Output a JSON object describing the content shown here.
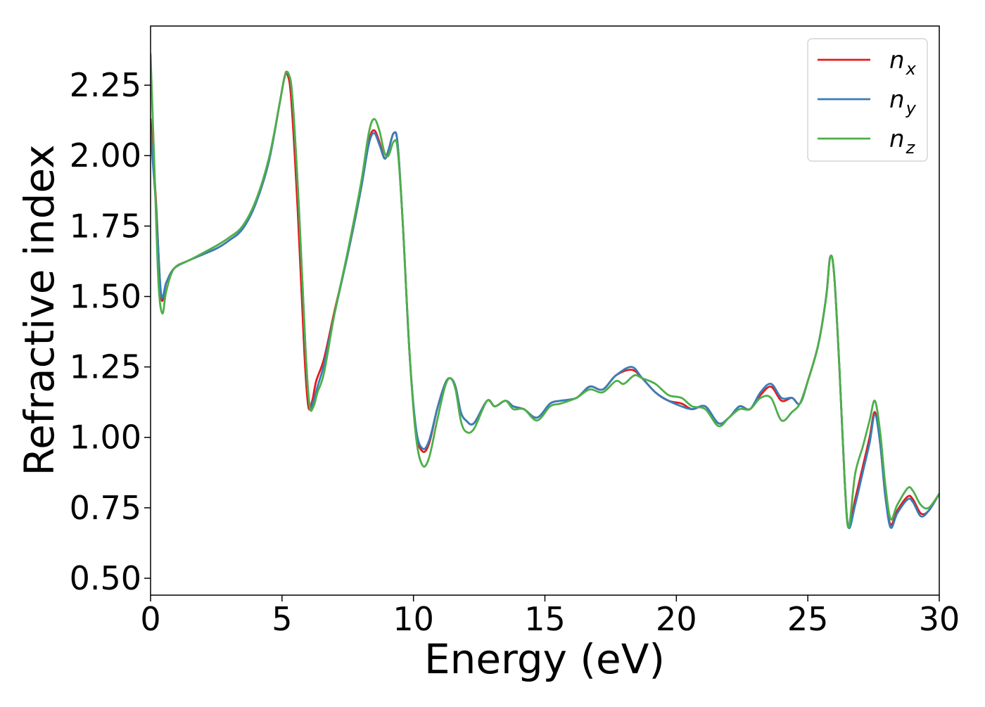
{
  "chart_data": {
    "type": "line",
    "xlabel": "Energy (eV)",
    "ylabel": "Refractive index",
    "xlim": [
      0,
      30
    ],
    "ylim": [
      0.44,
      2.46
    ],
    "xticks": [
      0,
      5,
      10,
      15,
      20,
      25,
      30
    ],
    "xtick_labels": [
      "0",
      "5",
      "10",
      "15",
      "20",
      "25",
      "30"
    ],
    "yticks": [
      0.5,
      0.75,
      1.0,
      1.25,
      1.5,
      1.75,
      2.0,
      2.25
    ],
    "ytick_labels": [
      "0.50",
      "0.75",
      "1.00",
      "1.25",
      "1.50",
      "1.75",
      "2.00",
      "2.25"
    ],
    "grid": false,
    "legend_position": "top-right",
    "series": [
      {
        "name": "n_x",
        "legend_base": "n",
        "legend_sub": "x",
        "color": "#e41a1c",
        "points": [
          [
            0,
            2.13
          ],
          [
            0.2,
            1.85
          ],
          [
            0.4,
            1.5
          ],
          [
            0.6,
            1.55
          ],
          [
            0.9,
            1.6
          ],
          [
            1.5,
            1.63
          ],
          [
            2.5,
            1.67
          ],
          [
            3.0,
            1.7
          ],
          [
            3.5,
            1.74
          ],
          [
            4.0,
            1.83
          ],
          [
            4.5,
            1.98
          ],
          [
            4.9,
            2.18
          ],
          [
            5.1,
            2.28
          ],
          [
            5.2,
            2.29
          ],
          [
            5.35,
            2.2
          ],
          [
            5.6,
            1.8
          ],
          [
            5.85,
            1.3
          ],
          [
            6.0,
            1.11
          ],
          [
            6.15,
            1.13
          ],
          [
            6.3,
            1.2
          ],
          [
            6.6,
            1.28
          ],
          [
            7.0,
            1.45
          ],
          [
            7.5,
            1.65
          ],
          [
            8.0,
            1.88
          ],
          [
            8.3,
            2.05
          ],
          [
            8.5,
            2.09
          ],
          [
            8.7,
            2.05
          ],
          [
            8.9,
            1.99
          ],
          [
            9.05,
            2.02
          ],
          [
            9.25,
            2.08
          ],
          [
            9.4,
            2.04
          ],
          [
            9.6,
            1.75
          ],
          [
            9.85,
            1.3
          ],
          [
            10.1,
            1.02
          ],
          [
            10.35,
            0.95
          ],
          [
            10.6,
            0.98
          ],
          [
            10.9,
            1.1
          ],
          [
            11.2,
            1.19
          ],
          [
            11.4,
            1.21
          ],
          [
            11.6,
            1.18
          ],
          [
            11.8,
            1.09
          ],
          [
            12.0,
            1.06
          ],
          [
            12.3,
            1.05
          ],
          [
            12.8,
            1.13
          ],
          [
            13.1,
            1.11
          ],
          [
            13.5,
            1.13
          ],
          [
            13.8,
            1.11
          ],
          [
            14.2,
            1.1
          ],
          [
            14.7,
            1.07
          ],
          [
            15.2,
            1.12
          ],
          [
            15.6,
            1.13
          ],
          [
            16.2,
            1.14
          ],
          [
            16.7,
            1.18
          ],
          [
            17.2,
            1.17
          ],
          [
            17.7,
            1.22
          ],
          [
            18.3,
            1.24
          ],
          [
            18.7,
            1.21
          ],
          [
            19.2,
            1.16
          ],
          [
            19.7,
            1.13
          ],
          [
            20.2,
            1.12
          ],
          [
            20.6,
            1.1
          ],
          [
            21.1,
            1.11
          ],
          [
            21.6,
            1.05
          ],
          [
            22.0,
            1.07
          ],
          [
            22.4,
            1.11
          ],
          [
            22.8,
            1.1
          ],
          [
            23.2,
            1.15
          ],
          [
            23.6,
            1.18
          ],
          [
            24.0,
            1.13
          ],
          [
            24.4,
            1.14
          ],
          [
            24.7,
            1.12
          ],
          [
            25.0,
            1.2
          ],
          [
            25.4,
            1.33
          ],
          [
            25.7,
            1.5
          ],
          [
            25.85,
            1.64
          ],
          [
            26.0,
            1.58
          ],
          [
            26.2,
            1.25
          ],
          [
            26.4,
            0.85
          ],
          [
            26.55,
            0.68
          ],
          [
            26.8,
            0.78
          ],
          [
            27.1,
            0.9
          ],
          [
            27.35,
            1.0
          ],
          [
            27.55,
            1.09
          ],
          [
            27.75,
            0.98
          ],
          [
            27.95,
            0.79
          ],
          [
            28.15,
            0.69
          ],
          [
            28.4,
            0.74
          ],
          [
            28.8,
            0.79
          ],
          [
            29.0,
            0.78
          ],
          [
            29.3,
            0.73
          ],
          [
            29.6,
            0.74
          ],
          [
            30.0,
            0.8
          ]
        ]
      },
      {
        "name": "n_y",
        "legend_base": "n",
        "legend_sub": "y",
        "color": "#377eb8",
        "points": [
          [
            0,
            2.08
          ],
          [
            0.2,
            1.83
          ],
          [
            0.4,
            1.51
          ],
          [
            0.6,
            1.55
          ],
          [
            0.9,
            1.6
          ],
          [
            1.5,
            1.63
          ],
          [
            2.5,
            1.67
          ],
          [
            3.0,
            1.7
          ],
          [
            3.5,
            1.74
          ],
          [
            4.0,
            1.83
          ],
          [
            4.5,
            1.98
          ],
          [
            4.9,
            2.18
          ],
          [
            5.1,
            2.28
          ],
          [
            5.25,
            2.29
          ],
          [
            5.4,
            2.2
          ],
          [
            5.65,
            1.8
          ],
          [
            5.9,
            1.3
          ],
          [
            6.05,
            1.11
          ],
          [
            6.2,
            1.13
          ],
          [
            6.35,
            1.18
          ],
          [
            6.6,
            1.26
          ],
          [
            7.0,
            1.44
          ],
          [
            7.5,
            1.65
          ],
          [
            8.0,
            1.88
          ],
          [
            8.3,
            2.04
          ],
          [
            8.5,
            2.08
          ],
          [
            8.7,
            2.04
          ],
          [
            8.9,
            1.99
          ],
          [
            9.05,
            2.02
          ],
          [
            9.25,
            2.08
          ],
          [
            9.4,
            2.04
          ],
          [
            9.6,
            1.75
          ],
          [
            9.85,
            1.3
          ],
          [
            10.1,
            1.03
          ],
          [
            10.35,
            0.96
          ],
          [
            10.6,
            0.99
          ],
          [
            10.9,
            1.1
          ],
          [
            11.2,
            1.19
          ],
          [
            11.4,
            1.21
          ],
          [
            11.6,
            1.18
          ],
          [
            11.8,
            1.09
          ],
          [
            12.0,
            1.06
          ],
          [
            12.3,
            1.05
          ],
          [
            12.8,
            1.13
          ],
          [
            13.1,
            1.11
          ],
          [
            13.5,
            1.13
          ],
          [
            13.8,
            1.11
          ],
          [
            14.2,
            1.1
          ],
          [
            14.7,
            1.07
          ],
          [
            15.2,
            1.12
          ],
          [
            15.6,
            1.13
          ],
          [
            16.2,
            1.14
          ],
          [
            16.7,
            1.18
          ],
          [
            17.2,
            1.17
          ],
          [
            17.7,
            1.22
          ],
          [
            18.3,
            1.25
          ],
          [
            18.7,
            1.21
          ],
          [
            19.2,
            1.16
          ],
          [
            19.7,
            1.13
          ],
          [
            20.2,
            1.11
          ],
          [
            20.6,
            1.1
          ],
          [
            21.1,
            1.11
          ],
          [
            21.6,
            1.05
          ],
          [
            22.0,
            1.07
          ],
          [
            22.4,
            1.11
          ],
          [
            22.8,
            1.1
          ],
          [
            23.2,
            1.16
          ],
          [
            23.6,
            1.19
          ],
          [
            24.0,
            1.14
          ],
          [
            24.4,
            1.14
          ],
          [
            24.7,
            1.12
          ],
          [
            25.0,
            1.2
          ],
          [
            25.4,
            1.33
          ],
          [
            25.7,
            1.5
          ],
          [
            25.85,
            1.64
          ],
          [
            26.0,
            1.58
          ],
          [
            26.2,
            1.25
          ],
          [
            26.4,
            0.85
          ],
          [
            26.55,
            0.68
          ],
          [
            26.8,
            0.76
          ],
          [
            27.1,
            0.88
          ],
          [
            27.35,
            0.98
          ],
          [
            27.55,
            1.08
          ],
          [
            27.75,
            0.98
          ],
          [
            27.95,
            0.79
          ],
          [
            28.15,
            0.68
          ],
          [
            28.4,
            0.73
          ],
          [
            28.8,
            0.78
          ],
          [
            29.0,
            0.77
          ],
          [
            29.3,
            0.72
          ],
          [
            29.6,
            0.74
          ],
          [
            30.0,
            0.8
          ]
        ]
      },
      {
        "name": "n_z",
        "legend_base": "n",
        "legend_sub": "z",
        "color": "#4daf4a",
        "points": [
          [
            0,
            2.36
          ],
          [
            0.15,
            1.95
          ],
          [
            0.3,
            1.55
          ],
          [
            0.45,
            1.44
          ],
          [
            0.6,
            1.52
          ],
          [
            0.9,
            1.6
          ],
          [
            1.5,
            1.63
          ],
          [
            2.5,
            1.68
          ],
          [
            3.0,
            1.71
          ],
          [
            3.5,
            1.75
          ],
          [
            4.0,
            1.84
          ],
          [
            4.5,
            1.99
          ],
          [
            4.9,
            2.18
          ],
          [
            5.1,
            2.28
          ],
          [
            5.25,
            2.29
          ],
          [
            5.4,
            2.2
          ],
          [
            5.65,
            1.8
          ],
          [
            5.9,
            1.3
          ],
          [
            6.05,
            1.11
          ],
          [
            6.2,
            1.11
          ],
          [
            6.35,
            1.16
          ],
          [
            6.6,
            1.23
          ],
          [
            7.0,
            1.44
          ],
          [
            7.5,
            1.66
          ],
          [
            8.0,
            1.9
          ],
          [
            8.3,
            2.08
          ],
          [
            8.5,
            2.13
          ],
          [
            8.7,
            2.09
          ],
          [
            8.9,
            2.01
          ],
          [
            9.05,
            2.0
          ],
          [
            9.25,
            2.05
          ],
          [
            9.4,
            2.02
          ],
          [
            9.6,
            1.75
          ],
          [
            9.85,
            1.3
          ],
          [
            10.1,
            1.0
          ],
          [
            10.35,
            0.9
          ],
          [
            10.6,
            0.93
          ],
          [
            10.9,
            1.06
          ],
          [
            11.2,
            1.18
          ],
          [
            11.4,
            1.21
          ],
          [
            11.6,
            1.17
          ],
          [
            11.8,
            1.06
          ],
          [
            12.0,
            1.02
          ],
          [
            12.3,
            1.03
          ],
          [
            12.8,
            1.13
          ],
          [
            13.1,
            1.11
          ],
          [
            13.5,
            1.13
          ],
          [
            13.8,
            1.1
          ],
          [
            14.2,
            1.1
          ],
          [
            14.7,
            1.06
          ],
          [
            15.2,
            1.11
          ],
          [
            15.6,
            1.12
          ],
          [
            16.2,
            1.14
          ],
          [
            16.7,
            1.17
          ],
          [
            17.2,
            1.16
          ],
          [
            17.7,
            1.2
          ],
          [
            18.0,
            1.19
          ],
          [
            18.4,
            1.22
          ],
          [
            18.7,
            1.21
          ],
          [
            19.2,
            1.19
          ],
          [
            19.7,
            1.15
          ],
          [
            20.2,
            1.14
          ],
          [
            20.6,
            1.11
          ],
          [
            21.1,
            1.1
          ],
          [
            21.6,
            1.04
          ],
          [
            22.0,
            1.07
          ],
          [
            22.4,
            1.1
          ],
          [
            22.8,
            1.1
          ],
          [
            23.2,
            1.14
          ],
          [
            23.6,
            1.14
          ],
          [
            24.0,
            1.06
          ],
          [
            24.4,
            1.09
          ],
          [
            24.7,
            1.12
          ],
          [
            25.0,
            1.2
          ],
          [
            25.4,
            1.33
          ],
          [
            25.7,
            1.5
          ],
          [
            25.85,
            1.64
          ],
          [
            26.0,
            1.58
          ],
          [
            26.2,
            1.25
          ],
          [
            26.4,
            0.85
          ],
          [
            26.55,
            0.68
          ],
          [
            26.8,
            0.87
          ],
          [
            27.1,
            0.97
          ],
          [
            27.35,
            1.06
          ],
          [
            27.55,
            1.13
          ],
          [
            27.75,
            1.02
          ],
          [
            27.95,
            0.83
          ],
          [
            28.15,
            0.71
          ],
          [
            28.4,
            0.76
          ],
          [
            28.8,
            0.82
          ],
          [
            29.0,
            0.81
          ],
          [
            29.3,
            0.76
          ],
          [
            29.6,
            0.75
          ],
          [
            30.0,
            0.8
          ]
        ]
      }
    ]
  }
}
